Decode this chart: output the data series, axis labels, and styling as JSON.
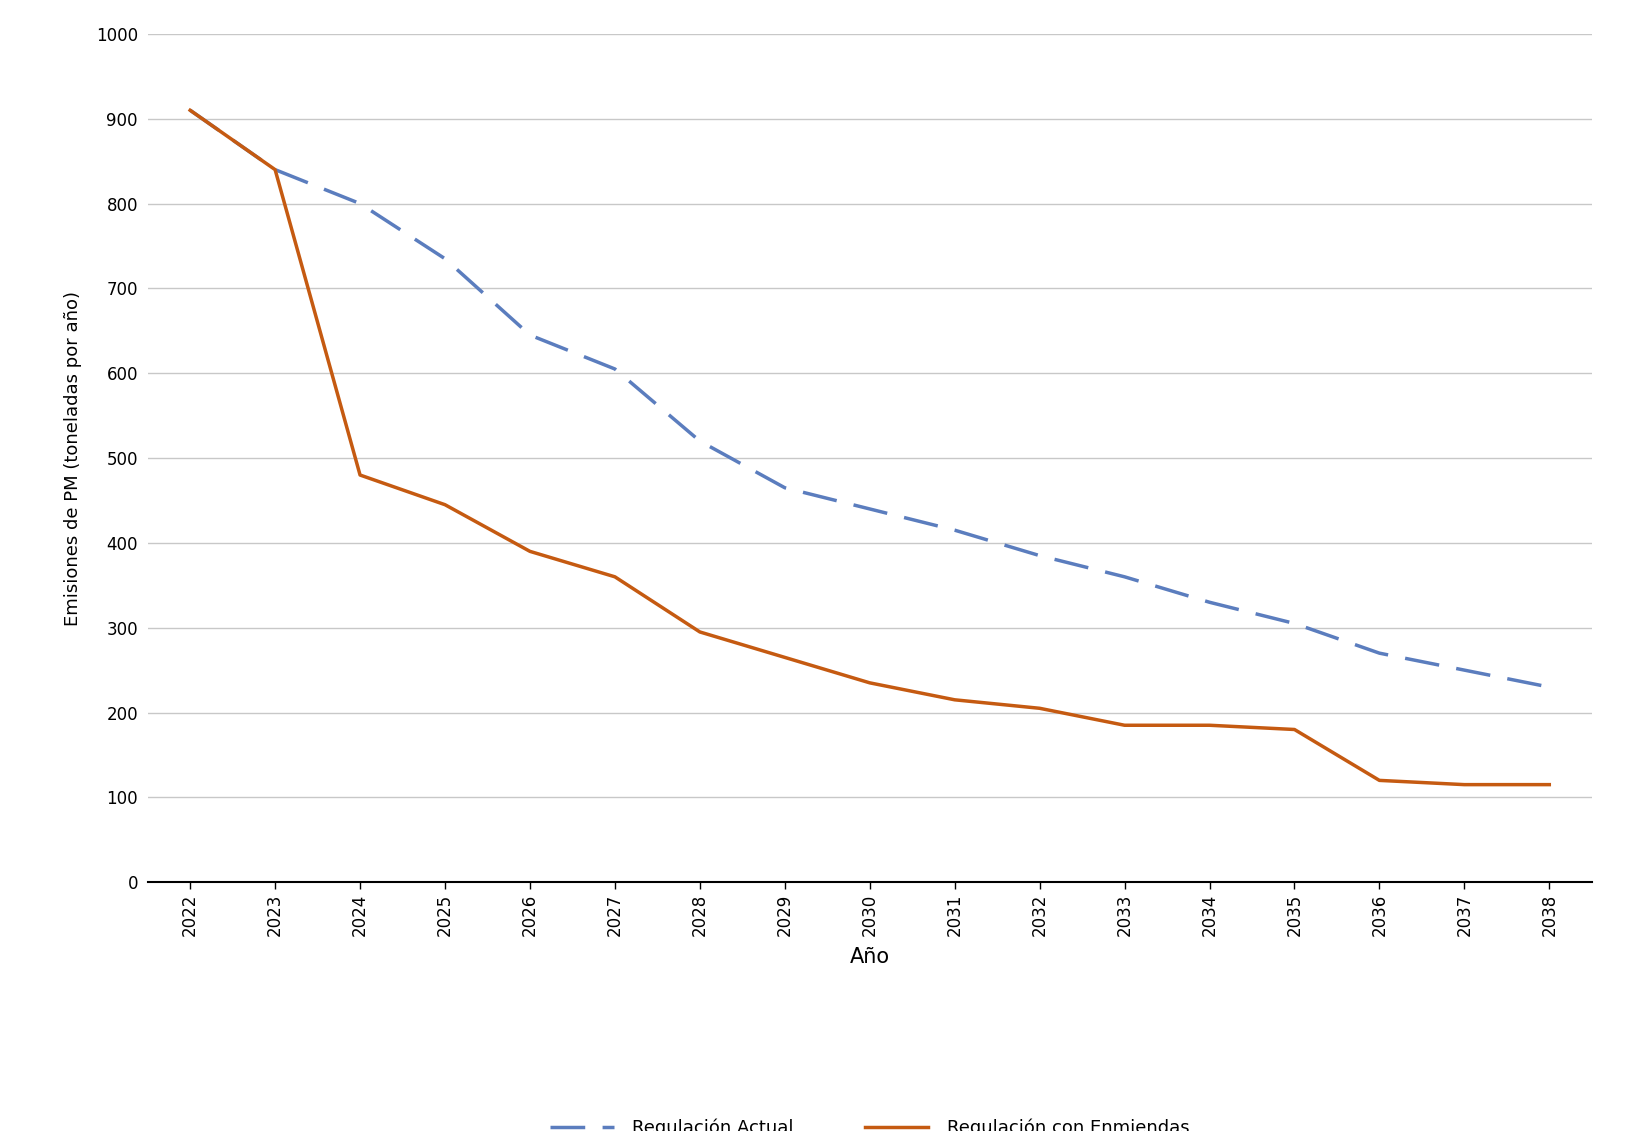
{
  "years": [
    2022,
    2023,
    2024,
    2025,
    2026,
    2027,
    2028,
    2029,
    2030,
    2031,
    2032,
    2033,
    2034,
    2035,
    2036,
    2037,
    2038
  ],
  "regulacion_actual": [
    910,
    840,
    800,
    735,
    645,
    605,
    520,
    465,
    440,
    415,
    385,
    360,
    330,
    305,
    270,
    250,
    230
  ],
  "regulacion_enmiendas": [
    910,
    840,
    480,
    445,
    390,
    360,
    295,
    265,
    235,
    215,
    205,
    185,
    185,
    180,
    120,
    115,
    115
  ],
  "color_actual": "#5B7DBE",
  "color_enmiendas": "#C55A11",
  "xlabel": "Año",
  "ylabel": "Emisiones de PM (toneladas por año)",
  "ylim": [
    0,
    1000
  ],
  "yticks": [
    0,
    100,
    200,
    300,
    400,
    500,
    600,
    700,
    800,
    900,
    1000
  ],
  "label_actual": "Regulación Actual",
  "label_enmiendas": "Regulación con Enmiendas",
  "background_color": "#FFFFFF",
  "grid_color": "#C8C8C8",
  "linewidth": 2.5,
  "dash_pattern": [
    10,
    5
  ],
  "xlabel_fontsize": 15,
  "ylabel_fontsize": 13,
  "tick_fontsize": 12,
  "legend_fontsize": 13
}
